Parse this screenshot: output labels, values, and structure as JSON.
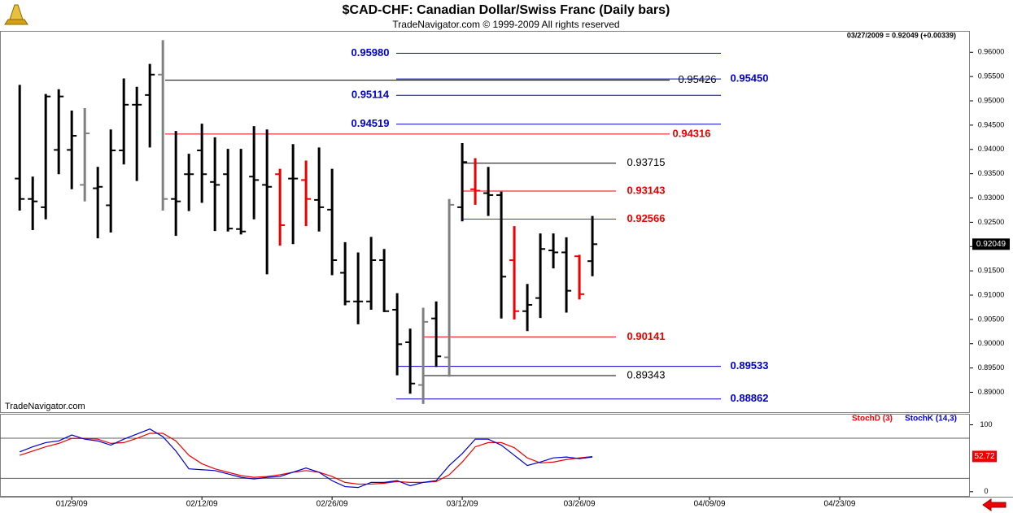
{
  "chart_data": [
    {
      "type": "ohlc",
      "title": "$CAD-CHF:  Canadian Dollar/Swiss Franc  (Daily bars)",
      "subtitle": "TradeNavigator.com © 1999-2009 All rights reserved",
      "info": "03/27/2009 = 0.92049 (+0.00339)",
      "watermark": "TradeNavigator.com",
      "x": [
        0,
        1,
        2,
        3,
        4,
        5,
        6,
        7,
        8,
        9,
        10,
        11,
        12,
        13,
        14,
        15,
        16,
        17,
        18,
        19,
        20,
        21,
        22,
        23,
        24,
        25,
        26,
        27,
        28,
        29,
        30,
        31,
        32,
        33,
        34,
        35,
        36,
        37,
        38,
        39,
        40,
        41,
        42,
        43,
        44
      ],
      "open": [
        0.934,
        0.9298,
        0.9281,
        0.9399,
        0.9399,
        0.9327,
        0.932,
        0.9285,
        0.9398,
        0.9492,
        0.9512,
        0.9554,
        0.9298,
        0.9349,
        0.9398,
        0.9333,
        0.9349,
        0.9236,
        0.9344,
        0.9327,
        0.9349,
        0.934,
        0.9337,
        0.9296,
        0.9276,
        0.9146,
        0.9087,
        0.9087,
        0.9172,
        0.907,
        0.9003,
        0.8915,
        0.9052,
        0.8972,
        0.9281,
        0.9318,
        0.931,
        0.9306,
        0.9172,
        0.9067,
        0.9094,
        0.9192,
        0.9188,
        0.918,
        0.917
      ],
      "high": [
        0.9533,
        0.9344,
        0.9514,
        0.9524,
        0.948,
        0.9485,
        0.9364,
        0.9441,
        0.9546,
        0.9529,
        0.9576,
        0.9625,
        0.9438,
        0.9391,
        0.9453,
        0.9425,
        0.9401,
        0.9401,
        0.9448,
        0.9441,
        0.936,
        0.9411,
        0.9377,
        0.9404,
        0.936,
        0.9209,
        0.9188,
        0.922,
        0.9195,
        0.9104,
        0.9031,
        0.9074,
        0.9087,
        0.9298,
        0.9413,
        0.9382,
        0.9364,
        0.9313,
        0.9242,
        0.9123,
        0.9227,
        0.9227,
        0.9219,
        0.9183,
        0.9263
      ],
      "low": [
        0.9274,
        0.9234,
        0.9256,
        0.9349,
        0.9318,
        0.9293,
        0.9217,
        0.9229,
        0.9369,
        0.9335,
        0.9404,
        0.9274,
        0.9222,
        0.9273,
        0.929,
        0.9232,
        0.9231,
        0.9225,
        0.9256,
        0.9143,
        0.9202,
        0.9205,
        0.9242,
        0.9231,
        0.9141,
        0.9079,
        0.904,
        0.907,
        0.9065,
        0.8935,
        0.8897,
        0.8876,
        0.8952,
        0.8932,
        0.9252,
        0.9286,
        0.9263,
        0.9052,
        0.905,
        0.9026,
        0.9053,
        0.9155,
        0.9064,
        0.9091,
        0.9139
      ],
      "close": [
        0.9298,
        0.9293,
        0.9509,
        0.9509,
        0.9428,
        0.9433,
        0.9323,
        0.9398,
        0.9492,
        0.9492,
        0.9554,
        0.9298,
        0.9293,
        0.9349,
        0.9349,
        0.9327,
        0.9237,
        0.9231,
        0.9337,
        0.9323,
        0.9244,
        0.934,
        0.9298,
        0.9281,
        0.9172,
        0.9087,
        0.9087,
        0.9172,
        0.9067,
        0.8999,
        0.8918,
        0.9045,
        0.8974,
        0.9286,
        0.9374,
        0.9315,
        0.9306,
        0.9138,
        0.9067,
        0.908,
        0.9195,
        0.9188,
        0.9109,
        0.9102,
        0.92049
      ],
      "colors": [
        "#000000",
        "#000000",
        "#000000",
        "#000000",
        "#000000",
        "#808080",
        "#000000",
        "#000000",
        "#000000",
        "#000000",
        "#000000",
        "#808080",
        "#000000",
        "#000000",
        "#000000",
        "#000000",
        "#000000",
        "#000000",
        "#000000",
        "#000000",
        "#ee0000",
        "#000000",
        "#ee0000",
        "#000000",
        "#000000",
        "#000000",
        "#000000",
        "#000000",
        "#000000",
        "#000000",
        "#000000",
        "#808080",
        "#000000",
        "#808080",
        "#000000",
        "#ee0000",
        "#000000",
        "#000000",
        "#ee0000",
        "#000000",
        "#000000",
        "#000000",
        "#000000",
        "#ee0000",
        "#000000"
      ],
      "xlim": [
        -1.2,
        73
      ],
      "xticks": [
        {
          "value": 4,
          "label": "01/29/09"
        },
        {
          "value": 14,
          "label": "02/12/09"
        },
        {
          "value": 24,
          "label": "02/26/09"
        },
        {
          "value": 34,
          "label": "03/12/09"
        },
        {
          "value": 43,
          "label": "03/26/09"
        },
        {
          "value": 53,
          "label": "04/09/09"
        },
        {
          "value": 63,
          "label": "04/23/09"
        }
      ],
      "ylim": [
        0.8859,
        0.9644
      ],
      "yticks": [
        {
          "value": 0.89,
          "label": "0.89000"
        },
        {
          "value": 0.895,
          "label": "0.89500"
        },
        {
          "value": 0.9,
          "label": "0.90000"
        },
        {
          "value": 0.905,
          "label": "0.90500"
        },
        {
          "value": 0.91,
          "label": "0.91000"
        },
        {
          "value": 0.915,
          "label": "0.91500"
        },
        {
          "value": 0.92,
          "label": "0.92000"
        },
        {
          "value": 0.925,
          "label": "0.92500"
        },
        {
          "value": 0.93,
          "label": "0.93000"
        },
        {
          "value": 0.935,
          "label": "0.93500"
        },
        {
          "value": 0.94,
          "label": "0.94000"
        },
        {
          "value": 0.945,
          "label": "0.94500"
        },
        {
          "value": 0.95,
          "label": "0.95000"
        },
        {
          "value": 0.955,
          "label": "0.95500"
        },
        {
          "value": 0.96,
          "label": "0.96000"
        }
      ],
      "levels": [
        {
          "value": 0.9598,
          "label": "0.95980",
          "color": "#0000cc"
        },
        {
          "value": 0.95426,
          "label": "0.95426",
          "color": "#000000"
        },
        {
          "value": 0.9545,
          "label": "0.95450",
          "color": "#0000cc"
        },
        {
          "value": 0.95114,
          "label": "0.95114",
          "color": "#0000cc"
        },
        {
          "value": 0.94519,
          "label": "0.94519",
          "color": "#0000cc"
        },
        {
          "value": 0.94316,
          "label": "0.94316",
          "color": "#ee0000"
        },
        {
          "value": 0.93715,
          "label": "0.93715",
          "color": "#000000"
        },
        {
          "value": 0.93143,
          "label": "0.93143",
          "color": "#ee0000"
        },
        {
          "value": 0.92566,
          "label": "0.92566",
          "color": "#ee0000"
        },
        {
          "value": 0.90141,
          "label": "0.90141",
          "color": "#ee0000"
        },
        {
          "value": 0.89533,
          "label": "0.89533",
          "color": "#0000cc"
        },
        {
          "value": 0.89343,
          "label": "0.89343",
          "color": "#000000"
        },
        {
          "value": 0.88862,
          "label": "0.88862",
          "color": "#0000cc"
        }
      ]
    },
    {
      "type": "line",
      "series": [
        {
          "name": "StochD (3)",
          "color": "#ee0000",
          "values": [
            54.4,
            60.8,
            67.1,
            72.2,
            79.7,
            79.7,
            78.5,
            72.2,
            73.4,
            79.7,
            87.3,
            87.3,
            75.9,
            54.4,
            41.8,
            34.2,
            29.1,
            24.1,
            21.5,
            22.8,
            25.3,
            29.1,
            31.6,
            29.1,
            22.8,
            13.9,
            11.4,
            11.4,
            12.7,
            15.2,
            13.9,
            13.9,
            15.2,
            25.3,
            44.3,
            67.1,
            73.4,
            73.4,
            65.8,
            50.6,
            43.0,
            44.3,
            48.1,
            50.6,
            52.72
          ]
        },
        {
          "name": "StochK (14,3)",
          "color": "#0000cc",
          "values": [
            59.5,
            67.1,
            73.4,
            75.9,
            84.8,
            78.5,
            75.9,
            69.6,
            78.5,
            86.1,
            93.7,
            82.3,
            60.8,
            34.2,
            32.9,
            31.6,
            26.6,
            21.5,
            19.0,
            21.5,
            22.8,
            29.1,
            35.4,
            29.1,
            16.5,
            7.6,
            6.3,
            13.9,
            13.9,
            16.5,
            8.9,
            13.9,
            16.5,
            39.2,
            57.0,
            78.5,
            78.5,
            69.6,
            54.4,
            39.2,
            44.3,
            50.6,
            51.9,
            49.4,
            51.9
          ]
        }
      ],
      "ylim": [
        -6.3,
        115.2
      ],
      "yticks": [
        0,
        100
      ],
      "reference_lines": [
        80,
        20
      ]
    }
  ]
}
